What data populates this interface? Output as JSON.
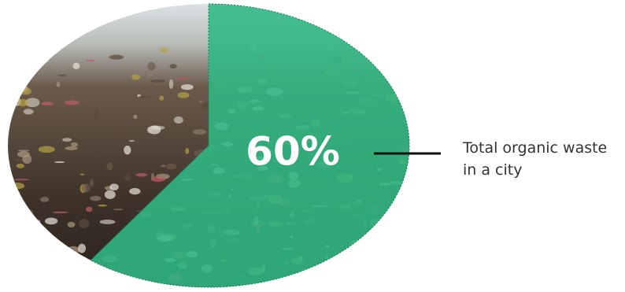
{
  "chart_data": {
    "type": "pie",
    "values": [
      60
    ],
    "value_labels": [
      "60%"
    ],
    "color": "#2fb884",
    "annotation": "Total organic waste in a city"
  }
}
